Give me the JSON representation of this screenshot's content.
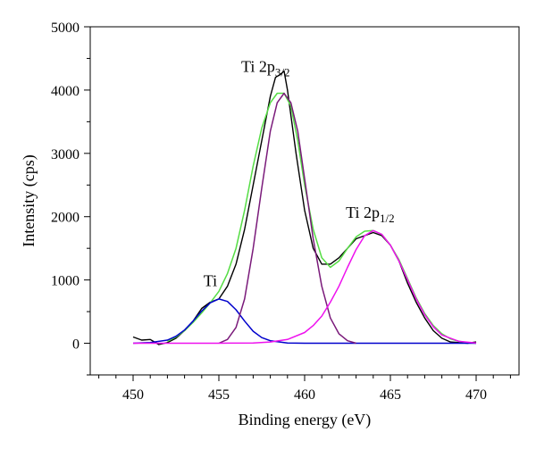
{
  "chart_data": {
    "type": "line",
    "title": "",
    "xlabel": "Binding energy (eV)",
    "ylabel": "Intensity (cps)",
    "xlim": [
      447.5,
      472.5
    ],
    "ylim": [
      -500,
      5000
    ],
    "x_ticks": [
      450,
      455,
      460,
      465,
      470
    ],
    "y_ticks": [
      0,
      1000,
      2000,
      3000,
      4000,
      5000
    ],
    "x_minor_step": 1,
    "y_minor_step": 500,
    "grid": false,
    "legend": "none",
    "annotations": [
      {
        "text": "Ti",
        "sub": "",
        "x": 454.1,
        "y": 900
      },
      {
        "text": "Ti 2p",
        "sub": "3/2",
        "x": 456.3,
        "y": 4290
      },
      {
        "text": "Ti 2p",
        "sub": "1/2",
        "x": 462.4,
        "y": 1980
      }
    ],
    "series": [
      {
        "color": "#000000",
        "x": [
          450,
          450.5,
          451,
          451.5,
          452,
          452.5,
          453,
          453.5,
          454,
          454.5,
          455,
          455.5,
          456,
          456.5,
          457,
          457.5,
          458,
          458.3,
          458.6,
          458.8,
          459,
          459.5,
          460,
          460.5,
          461,
          461.5,
          462,
          462.5,
          463,
          463.5,
          464,
          464.5,
          465,
          465.5,
          466,
          466.5,
          467,
          467.5,
          468,
          468.5,
          469,
          469.5,
          470
        ],
        "y": [
          100,
          50,
          60,
          -20,
          10,
          80,
          200,
          350,
          550,
          650,
          700,
          900,
          1250,
          1800,
          2500,
          3200,
          3900,
          4200,
          4250,
          4300,
          4000,
          3000,
          2100,
          1500,
          1250,
          1250,
          1350,
          1500,
          1650,
          1700,
          1750,
          1700,
          1550,
          1300,
          950,
          650,
          400,
          200,
          80,
          20,
          10,
          0,
          20
        ]
      },
      {
        "color": "#55dd44",
        "x": [
          452,
          452.5,
          453,
          453.5,
          454,
          454.5,
          455,
          455.5,
          456,
          456.5,
          457,
          457.5,
          458,
          458.4,
          458.8,
          459.2,
          459.6,
          460,
          460.5,
          461,
          461.5,
          462,
          462.5,
          463,
          463.5,
          464,
          464.5,
          465,
          465.5,
          466,
          466.5,
          467,
          467.5,
          468,
          468.5,
          469,
          469.5,
          470
        ],
        "y": [
          30,
          100,
          200,
          330,
          480,
          640,
          820,
          1100,
          1500,
          2100,
          2800,
          3400,
          3800,
          3950,
          3950,
          3750,
          3200,
          2500,
          1800,
          1350,
          1200,
          1300,
          1500,
          1680,
          1770,
          1780,
          1720,
          1550,
          1320,
          1020,
          720,
          470,
          280,
          150,
          70,
          30,
          10,
          0
        ]
      },
      {
        "color": "#0000cc",
        "x": [
          450,
          451,
          452,
          452.5,
          453,
          453.5,
          454,
          454.5,
          455,
          455.5,
          456,
          456.5,
          457,
          457.5,
          458,
          459,
          460,
          462,
          466,
          470
        ],
        "y": [
          0,
          10,
          50,
          110,
          210,
          350,
          510,
          640,
          700,
          660,
          530,
          350,
          190,
          90,
          40,
          5,
          0,
          0,
          0,
          0
        ]
      },
      {
        "color": "#7a1a7a",
        "x": [
          455,
          455.5,
          456,
          456.5,
          457,
          457.5,
          458,
          458.4,
          458.8,
          459.2,
          459.6,
          460,
          460.5,
          461,
          461.5,
          462,
          462.5,
          463
        ],
        "y": [
          0,
          60,
          250,
          700,
          1500,
          2450,
          3350,
          3800,
          3950,
          3800,
          3350,
          2600,
          1650,
          900,
          400,
          150,
          40,
          0
        ]
      },
      {
        "color": "#ee11ee",
        "x": [
          450,
          452,
          455,
          457,
          458,
          459,
          460,
          460.5,
          461,
          461.5,
          462,
          462.5,
          463,
          463.5,
          464,
          464.5,
          465,
          465.5,
          466,
          466.5,
          467,
          467.5,
          468,
          469,
          470
        ],
        "y": [
          0,
          0,
          0,
          5,
          20,
          60,
          170,
          280,
          430,
          650,
          900,
          1200,
          1480,
          1700,
          1780,
          1720,
          1550,
          1300,
          1000,
          700,
          450,
          260,
          130,
          30,
          5
        ]
      }
    ]
  }
}
